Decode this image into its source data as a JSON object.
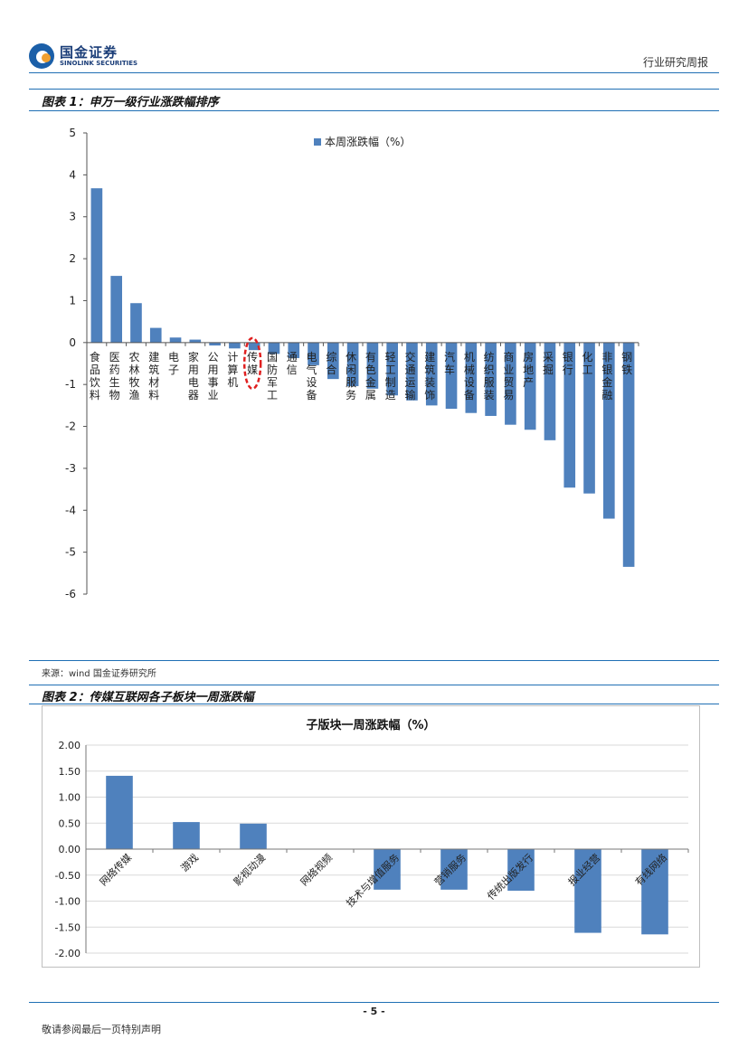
{
  "header": {
    "logo_cn": "国金证券",
    "logo_en": "SINOLINK SECURITIES",
    "report_type": "行业研究周报"
  },
  "figure1": {
    "title": "图表 1：申万一级行业涨跌幅排序"
  },
  "source": "来源：wind 国金证券研究所",
  "figure2": {
    "title": "图表 2：传媒互联网各子板块一周涨跌幅"
  },
  "footer": {
    "page_number": "- 5 -",
    "disclaimer": "敬请参阅最后一页特别声明"
  },
  "colors": {
    "bar": "#4f81bd",
    "rule": "#1f6fb4",
    "highlight": "#e02020"
  },
  "chart_data": [
    {
      "type": "bar",
      "title": "",
      "legend": "本周涨跌幅（%）",
      "legend_position": "top-center",
      "highlighted_category": "传媒",
      "ylim": [
        -6,
        5
      ],
      "yticks": [
        "5",
        "4",
        "3",
        "2",
        "1",
        "0",
        "-1",
        "-2",
        "-3",
        "-4",
        "-5",
        "-6"
      ],
      "categories": [
        "食品饮料",
        "医药生物",
        "农林牧渔",
        "建筑材料",
        "电子",
        "家用电器",
        "公用事业",
        "计算机",
        "传媒",
        "国防军工",
        "通信",
        "电气设备",
        "综合",
        "休闲服务",
        "有色金属",
        "轻工制造",
        "交通运输",
        "建筑装饰",
        "汽车",
        "机械设备",
        "纺织服装",
        "商业贸易",
        "房地产",
        "采掘",
        "银行",
        "化工",
        "非银金融",
        "钢铁"
      ],
      "values": [
        3.68,
        1.59,
        0.94,
        0.35,
        0.12,
        0.07,
        -0.07,
        -0.14,
        -0.18,
        -0.27,
        -0.37,
        -0.54,
        -0.87,
        -1.04,
        -1.1,
        -1.26,
        -1.38,
        -1.5,
        -1.58,
        -1.68,
        -1.75,
        -1.96,
        -2.08,
        -2.33,
        -3.46,
        -3.6,
        -4.2,
        -5.35
      ]
    },
    {
      "type": "bar",
      "title": "子版块一周涨跌幅（%）",
      "ylim": [
        -2,
        2
      ],
      "yticks": [
        "2.00",
        "1.50",
        "1.00",
        "0.50",
        "0.00",
        "-0.50",
        "-1.00",
        "-1.50",
        "-2.00"
      ],
      "grid": true,
      "categories": [
        "网络传媒",
        "游戏",
        "影视动漫",
        "网络视频",
        "技术与增值服务",
        "营销服务",
        "传统出版发行",
        "报业经营",
        "有线网络"
      ],
      "values": [
        1.41,
        0.52,
        0.49,
        0.0,
        -0.78,
        -0.78,
        -0.8,
        -1.61,
        -1.64
      ]
    }
  ]
}
